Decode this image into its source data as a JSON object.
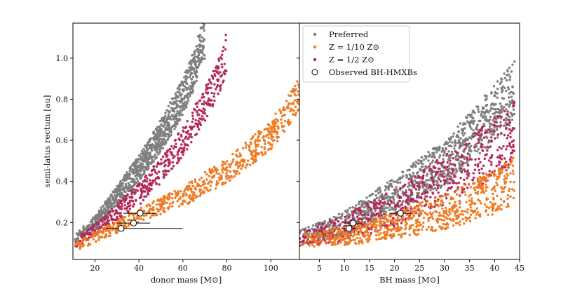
{
  "colors": {
    "preferred": "#7f7f7f",
    "low_z": "#f07b22",
    "half_z": "#b5275a",
    "axis": "#000000",
    "errorbar": "#000000",
    "marker_face": "#ffffff"
  },
  "legend": {
    "items": [
      {
        "label": "Preferred",
        "color_key": "preferred",
        "marker": "dot"
      },
      {
        "label": "Z = 1/10 Z⊙",
        "color_key": "low_z",
        "marker": "dot"
      },
      {
        "label": "Z = 1/2 Z⊙",
        "color_key": "half_z",
        "marker": "dot"
      },
      {
        "label": "Observed BH-HMXBs",
        "color_key": "marker_face",
        "marker": "open-circle"
      }
    ]
  },
  "chart_data": [
    {
      "type": "scatter",
      "panel": "left",
      "xlabel": "donor mass [M⊙]",
      "ylabel": "semi-latus rectum [au]",
      "xlim": [
        10,
        113
      ],
      "ylim": [
        0.02,
        1.17
      ],
      "xticks": [
        20,
        40,
        60,
        80,
        100
      ],
      "yticks": [
        0.2,
        0.4,
        0.6,
        0.8,
        1.0
      ],
      "ytick_labels": [
        "0.2",
        "0.4",
        "0.6",
        "0.8",
        "1.0"
      ],
      "series": [
        {
          "name": "Preferred",
          "color_key": "preferred",
          "x_range": [
            11,
            70
          ],
          "trend_points": [
            [
              11,
              0.12
            ],
            [
              20,
              0.2
            ],
            [
              30,
              0.33
            ],
            [
              40,
              0.47
            ],
            [
              50,
              0.63
            ],
            [
              60,
              0.82
            ],
            [
              66,
              0.98
            ],
            [
              69,
              1.11
            ]
          ],
          "spread": 0.09,
          "count": 1100
        },
        {
          "name": "Z = 1/2 Z⊙",
          "color_key": "half_z",
          "x_range": [
            11,
            80
          ],
          "trend_points": [
            [
              11,
              0.1
            ],
            [
              25,
              0.21
            ],
            [
              40,
              0.34
            ],
            [
              50,
              0.46
            ],
            [
              60,
              0.6
            ],
            [
              70,
              0.78
            ],
            [
              78,
              0.96
            ],
            [
              80,
              1.05
            ]
          ],
          "spread": 0.08,
          "count": 520
        },
        {
          "name": "Z = 1/10 Z⊙",
          "color_key": "low_z",
          "x_range": [
            11,
            113
          ],
          "trend_points": [
            [
              11,
              0.08
            ],
            [
              20,
              0.13
            ],
            [
              30,
              0.18
            ],
            [
              40,
              0.24
            ],
            [
              60,
              0.33
            ],
            [
              80,
              0.46
            ],
            [
              100,
              0.63
            ],
            [
              113,
              0.83
            ]
          ],
          "spread": 0.07,
          "count": 700
        }
      ],
      "observed": [
        {
          "x": 40.6,
          "y": 0.245,
          "xerr_low": 7.6,
          "xerr_high": 7.6,
          "yerr": 0.0
        },
        {
          "x": 37.6,
          "y": 0.197,
          "xerr_low": 7.5,
          "xerr_high": 7.5,
          "yerr": 0.0
        },
        {
          "x": 31.9,
          "y": 0.171,
          "xerr_low": 7.0,
          "xerr_high": 28.0,
          "yerr": 0.0
        }
      ]
    },
    {
      "type": "scatter",
      "panel": "right",
      "xlabel": "BH mass [M⊙]",
      "ylabel": "",
      "xlim": [
        1,
        45
      ],
      "ylim": [
        0.02,
        1.17
      ],
      "xticks": [
        5,
        10,
        15,
        20,
        25,
        30,
        35,
        40,
        45
      ],
      "yticks": [
        0.2,
        0.4,
        0.6,
        0.8,
        1.0
      ],
      "series": [
        {
          "name": "Preferred",
          "color_key": "preferred",
          "x_range": [
            1,
            44
          ],
          "trend_points": [
            [
              1,
              0.13
            ],
            [
              10,
              0.2
            ],
            [
              20,
              0.34
            ],
            [
              30,
              0.5
            ],
            [
              35,
              0.62
            ],
            [
              40,
              0.75
            ],
            [
              44,
              0.85
            ]
          ],
          "spread": 0.13,
          "count": 1100
        },
        {
          "name": "Z = 1/2 Z⊙",
          "color_key": "half_z",
          "x_range": [
            1,
            44
          ],
          "trend_points": [
            [
              1,
              0.12
            ],
            [
              10,
              0.18
            ],
            [
              20,
              0.28
            ],
            [
              30,
              0.42
            ],
            [
              40,
              0.58
            ],
            [
              44,
              0.65
            ]
          ],
          "spread": 0.14,
          "count": 650
        },
        {
          "name": "Z = 1/10 Z⊙",
          "color_key": "low_z",
          "x_range": [
            1,
            44
          ],
          "trend_points": [
            [
              1,
              0.11
            ],
            [
              10,
              0.14
            ],
            [
              20,
              0.19
            ],
            [
              30,
              0.26
            ],
            [
              40,
              0.36
            ],
            [
              44,
              0.42
            ]
          ],
          "spread": 0.1,
          "count": 750
        }
      ],
      "observed": [
        {
          "x": 21.2,
          "y": 0.245,
          "xerr_low": 2.2,
          "xerr_high": 2.2,
          "yerr": 0.0
        },
        {
          "x": 11.7,
          "y": 0.197,
          "xerr_low": 1.8,
          "xerr_high": 1.8,
          "yerr": 0.0
        },
        {
          "x": 10.9,
          "y": 0.171,
          "xerr_low": 1.4,
          "xerr_high": 1.4,
          "yerr": 0.0
        }
      ]
    }
  ]
}
